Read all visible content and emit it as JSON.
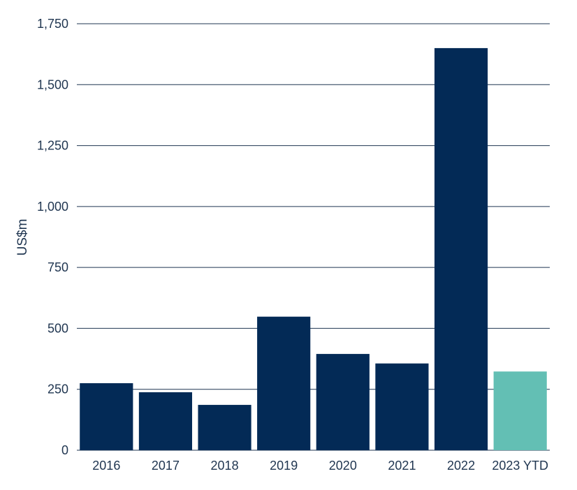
{
  "chart_data": {
    "type": "bar",
    "title": "",
    "xlabel": "",
    "ylabel": "US$m",
    "ylim": [
      0,
      1750
    ],
    "yticks": [
      0,
      250,
      500,
      750,
      1000,
      1250,
      1500,
      1750
    ],
    "ytick_labels": [
      "0",
      "250",
      "500",
      "750",
      "1,000",
      "1,250",
      "1,500",
      "1,750"
    ],
    "categories": [
      "2016",
      "2017",
      "2018",
      "2019",
      "2020",
      "2021",
      "2022",
      "2023 YTD"
    ],
    "values": [
      275,
      238,
      186,
      548,
      395,
      356,
      1650,
      323
    ],
    "grid": true,
    "legend": "none",
    "colors": {
      "bar": "#032a56",
      "highlight": "#63bfb4",
      "grid": "#1f3550",
      "text": "#1f3550"
    },
    "highlight_categories": [
      "2023 YTD"
    ]
  }
}
